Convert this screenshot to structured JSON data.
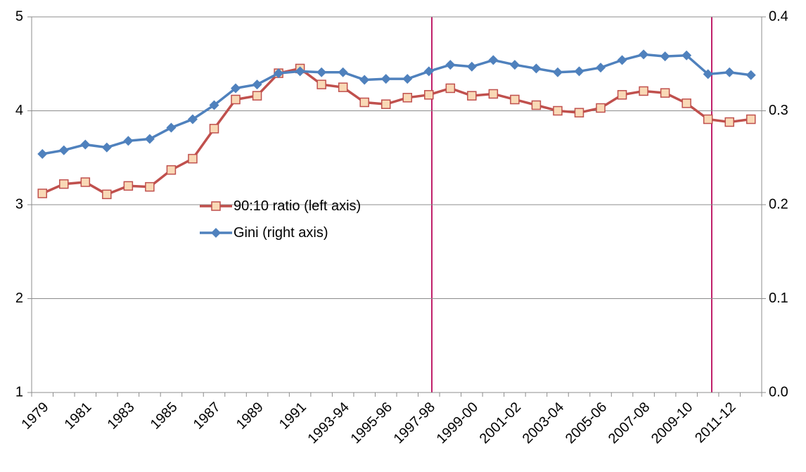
{
  "chart_data": {
    "type": "line",
    "categories": [
      "1979",
      null,
      "1981",
      null,
      "1983",
      null,
      "1985",
      null,
      "1987",
      null,
      "1989",
      null,
      "1991",
      null,
      "1993-94",
      null,
      "1995-96",
      null,
      "1997-98",
      null,
      "1999-00",
      null,
      "2001-02",
      null,
      "2003-04",
      null,
      "2005-06",
      null,
      "2007-08",
      null,
      "2009-10",
      null,
      "2011-12",
      null
    ],
    "series": [
      {
        "name": "90:10 ratio (left axis)",
        "color": "#c0504d",
        "marker": "square",
        "marker_fill": "#f9d9b6",
        "axis": "y",
        "values": [
          3.12,
          3.22,
          3.24,
          3.11,
          3.2,
          3.19,
          3.37,
          3.49,
          3.81,
          4.12,
          4.16,
          4.4,
          4.45,
          4.28,
          4.25,
          4.09,
          4.07,
          4.14,
          4.17,
          4.24,
          4.16,
          4.18,
          4.12,
          4.06,
          4.0,
          3.98,
          4.03,
          4.17,
          4.21,
          4.19,
          4.08,
          3.91,
          3.88,
          3.91
        ]
      },
      {
        "name": "Gini (right axis)",
        "color": "#4f81bd",
        "marker": "diamond",
        "axis": "y2",
        "values": [
          0.254,
          0.258,
          0.264,
          0.261,
          0.268,
          0.27,
          0.282,
          0.291,
          0.306,
          0.324,
          0.328,
          0.34,
          0.342,
          0.341,
          0.341,
          0.333,
          0.334,
          0.334,
          0.342,
          0.349,
          0.347,
          0.354,
          0.349,
          0.345,
          0.341,
          0.342,
          0.346,
          0.354,
          0.36,
          0.358,
          0.359,
          0.339,
          0.341,
          0.338
        ]
      }
    ],
    "ylim": [
      1,
      5
    ],
    "yticks": [
      1,
      2,
      3,
      4,
      5
    ],
    "y2lim": [
      0,
      0.4
    ],
    "y2ticks": [
      {
        "value": 0,
        "label": "0.0"
      },
      0.1,
      0.2,
      0.3,
      0.4
    ],
    "grid": true,
    "legend": "center-left"
  }
}
